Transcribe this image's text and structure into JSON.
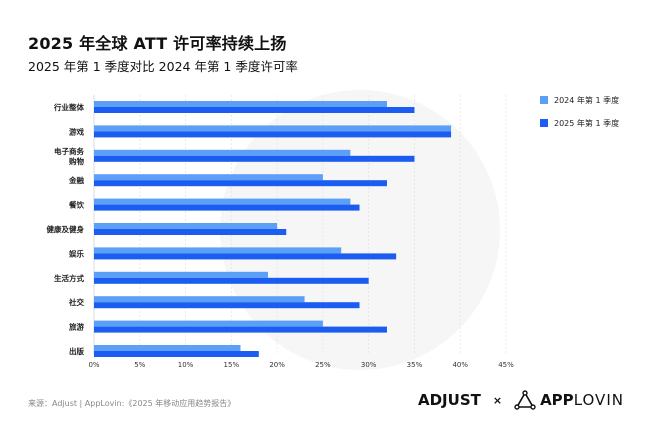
{
  "title": "2025 年全球 ATT 许可率持续上扬",
  "subtitle": "2025 年第 1 季度对比 2024 年第 1 季度许可率",
  "source": "来源：Adjust | AppLovin:《2025 年移动应用趋势报告》",
  "logos": {
    "adjust": "ADJUST",
    "separator": "×",
    "applovin_bold": "APP",
    "applovin_light": "LOVIN"
  },
  "chart_data": {
    "type": "bar",
    "orientation": "horizontal",
    "categories": [
      "行业整体",
      "游戏",
      "电子商务\n购物",
      "金融",
      "餐饮",
      "健康及健身",
      "娱乐",
      "生活方式",
      "社交",
      "旅游",
      "出版"
    ],
    "series": [
      {
        "name": "2024 年第 1 季度",
        "color": "#5b9ff7",
        "values": [
          32,
          39,
          28,
          25,
          28,
          20,
          27,
          19,
          23,
          25,
          16
        ]
      },
      {
        "name": "2025 年第 1 季度",
        "color": "#1a5df0",
        "values": [
          35,
          39,
          35,
          32,
          29,
          21,
          33,
          30,
          29,
          32,
          18
        ]
      }
    ],
    "xlim": [
      0,
      45
    ],
    "xticks": [
      "0%",
      "5%",
      "10%",
      "15%",
      "20%",
      "25%",
      "30%",
      "35%",
      "40%",
      "45%"
    ],
    "grid": true,
    "legend": "right"
  }
}
